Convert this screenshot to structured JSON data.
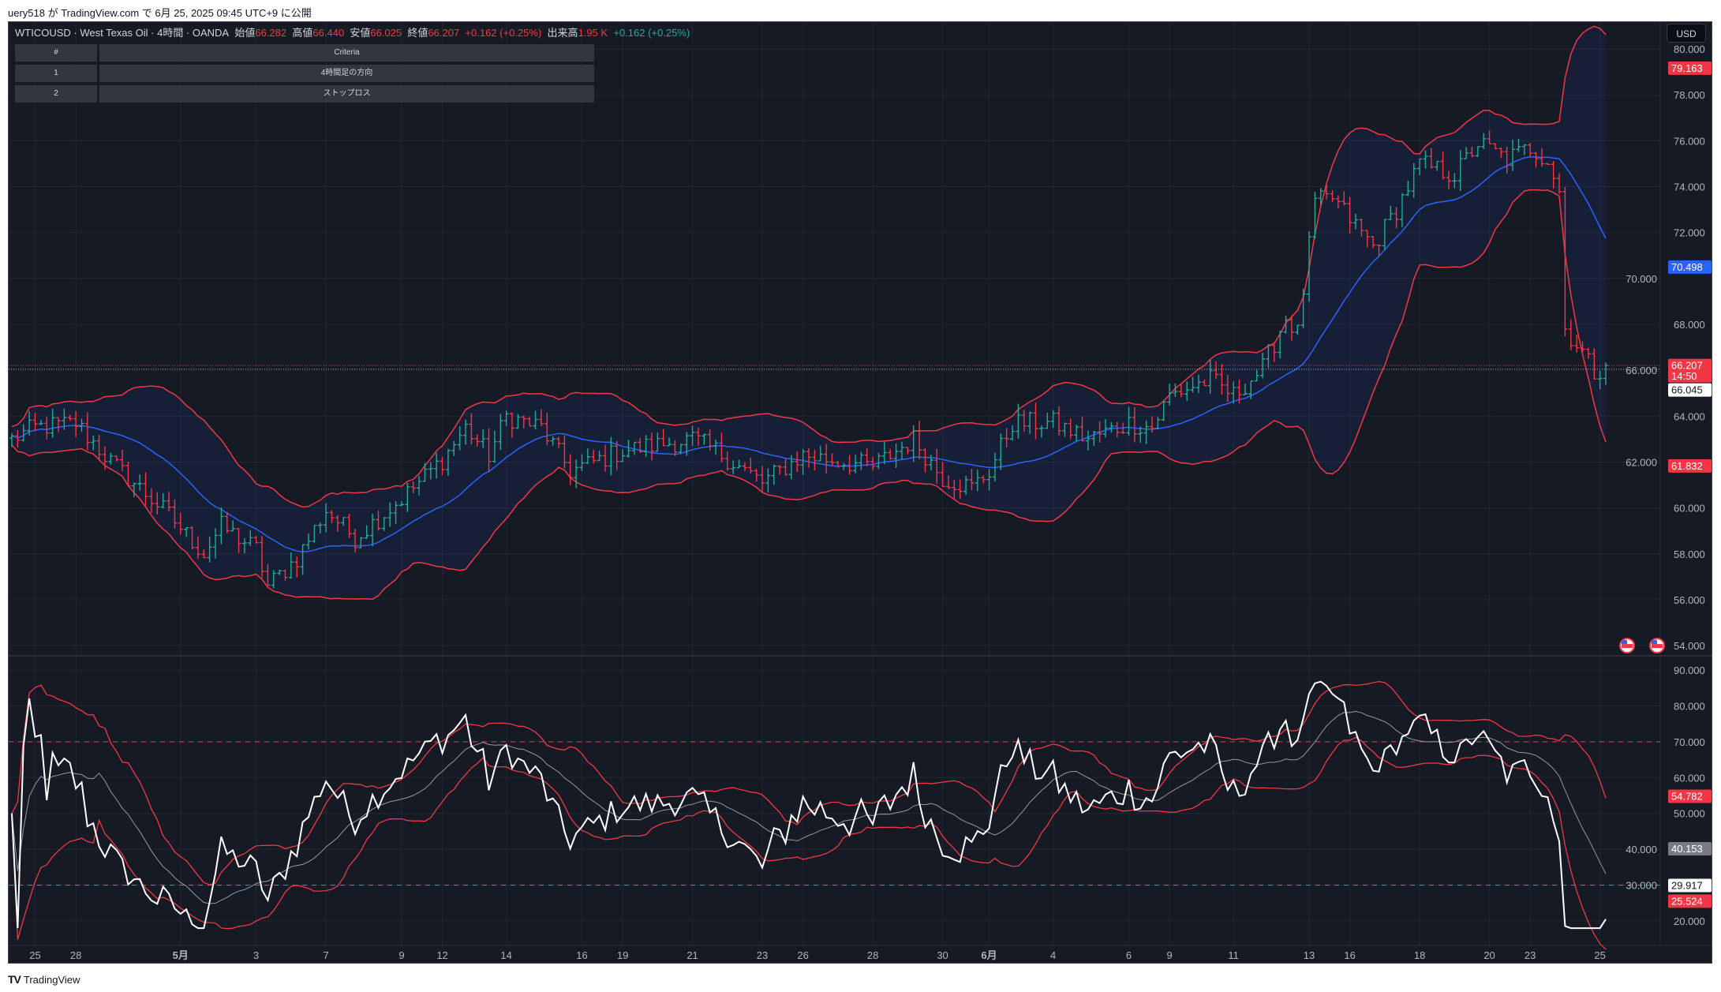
{
  "header": {
    "published": "uery518 が TradingView.com で 6月 25, 2025 09:45 UTC+9 に公開"
  },
  "legend": {
    "symbol": "WTICOUSD · West Texas Oil · 4時間 · OANDA",
    "open_label": "始値",
    "open": "66.282",
    "high_label": "高値",
    "high": "66.440",
    "low_label": "安値",
    "low": "66.025",
    "close_label": "終値",
    "close": "66.207",
    "change": "+0.162 (+0.25%)",
    "volume_label": "出来高",
    "volume": "1.95 K",
    "volume_change": "+0.162 (+0.25%)"
  },
  "table": {
    "header": [
      "#",
      "Criteria"
    ],
    "rows": [
      [
        "1",
        "4時間足の方向"
      ],
      [
        "2",
        "ストップロス"
      ]
    ]
  },
  "axis": {
    "currency": "USD",
    "price_ticks": [
      "54.000",
      "56.000",
      "58.000",
      "60.000",
      "62.000",
      "64.000",
      "66.000",
      "68.000",
      "70.000",
      "72.000",
      "74.000",
      "76.000",
      "78.000",
      "80.000"
    ],
    "rsi_ticks": [
      "20.000",
      "30.000",
      "40.000",
      "50.000",
      "60.000",
      "70.000",
      "80.000",
      "90.000"
    ],
    "price_labels": [
      {
        "value": 79.163,
        "text": "79.163",
        "color": "#f23645",
        "fg": "#ffffff"
      },
      {
        "value": 70.498,
        "text": "70.498",
        "color": "#2962ff",
        "fg": "#ffffff"
      },
      {
        "value": 66.207,
        "text": "66.207",
        "sub": "14:50",
        "color": "#f23645",
        "fg": "#ffffff"
      },
      {
        "value": 66.045,
        "text": "66.045",
        "color": "#ffffff",
        "fg": "#131722"
      },
      {
        "value": 61.832,
        "text": "61.832",
        "color": "#f23645",
        "fg": "#ffffff"
      }
    ],
    "rsi_labels": [
      {
        "value": 54.782,
        "text": "54.782",
        "color": "#f23645",
        "fg": "#ffffff"
      },
      {
        "value": 40.153,
        "text": "40.153",
        "color": "#787b86",
        "fg": "#ffffff"
      },
      {
        "value": 29.917,
        "text": "29.917",
        "color": "#ffffff",
        "fg": "#131722"
      },
      {
        "value": 25.524,
        "text": "25.524",
        "color": "#f23645",
        "fg": "#ffffff"
      }
    ],
    "time_ticks": [
      {
        "bar": 4,
        "label": "25"
      },
      {
        "bar": 11,
        "label": "28"
      },
      {
        "bar": 29,
        "label": "5月",
        "bold": true
      },
      {
        "bar": 42,
        "label": "3"
      },
      {
        "bar": 54,
        "label": "7"
      },
      {
        "bar": 67,
        "label": "9"
      },
      {
        "bar": 74,
        "label": "12"
      },
      {
        "bar": 85,
        "label": "14"
      },
      {
        "bar": 98,
        "label": "16"
      },
      {
        "bar": 105,
        "label": "19"
      },
      {
        "bar": 117,
        "label": "21"
      },
      {
        "bar": 129,
        "label": "23"
      },
      {
        "bar": 136,
        "label": "26"
      },
      {
        "bar": 148,
        "label": "28"
      },
      {
        "bar": 160,
        "label": "30"
      },
      {
        "bar": 168,
        "label": "6月",
        "bold": true
      },
      {
        "bar": 179,
        "label": "4"
      },
      {
        "bar": 192,
        "label": "6"
      },
      {
        "bar": 199,
        "label": "9"
      },
      {
        "bar": 210,
        "label": "11"
      },
      {
        "bar": 223,
        "label": "13"
      },
      {
        "bar": 230,
        "label": "16"
      },
      {
        "bar": 242,
        "label": "18"
      },
      {
        "bar": 254,
        "label": "20"
      },
      {
        "bar": 261,
        "label": "23"
      },
      {
        "bar": 273,
        "label": "25"
      }
    ]
  },
  "colors": {
    "up": "#22ab94",
    "down": "#f23645",
    "basis": "#2962ff",
    "band": "#f23645",
    "rsi": "#ffffff",
    "rsi_ma": "#9598a1",
    "bg": "#161a25",
    "grid": "#232733"
  },
  "chart_data": {
    "type": "ohlc",
    "title": "WTICOUSD 4H",
    "bars": 275,
    "price_range": [
      53.4,
      80.6
    ],
    "rsi_range": [
      15,
      95
    ],
    "rsi_levels": [
      70,
      30
    ],
    "close_keypoints": [
      [
        0,
        63.0
      ],
      [
        4,
        63.5
      ],
      [
        11,
        63.7
      ],
      [
        17,
        62
      ],
      [
        27,
        59.7
      ],
      [
        33,
        58
      ],
      [
        36,
        59.2
      ],
      [
        42,
        58.2
      ],
      [
        44,
        56.6
      ],
      [
        49,
        57.8
      ],
      [
        54,
        59.9
      ],
      [
        59,
        58.7
      ],
      [
        67,
        60.4
      ],
      [
        74,
        62.1
      ],
      [
        78,
        63.5
      ],
      [
        82,
        62.3
      ],
      [
        85,
        64
      ],
      [
        91,
        63.5
      ],
      [
        96,
        61.6
      ],
      [
        105,
        62.5
      ],
      [
        117,
        63
      ],
      [
        121,
        62.5
      ],
      [
        129,
        61.1
      ],
      [
        136,
        62.3
      ],
      [
        148,
        61.8
      ],
      [
        155,
        63
      ],
      [
        160,
        61.3
      ],
      [
        165,
        60.9
      ],
      [
        168,
        61.6
      ],
      [
        172,
        63.7
      ],
      [
        179,
        63.7
      ],
      [
        185,
        63
      ],
      [
        192,
        63.7
      ],
      [
        196,
        63.5
      ],
      [
        199,
        64.9
      ],
      [
        206,
        65.6
      ],
      [
        210,
        64.9
      ],
      [
        215,
        66.1
      ],
      [
        219,
        68.3
      ],
      [
        221,
        67.6
      ],
      [
        224,
        73.3
      ],
      [
        227,
        73.5
      ],
      [
        230,
        72.6
      ],
      [
        234,
        71.4
      ],
      [
        238,
        73
      ],
      [
        242,
        75
      ],
      [
        248,
        74.5
      ],
      [
        252,
        75.9
      ],
      [
        257,
        75.2
      ],
      [
        261,
        75.7
      ],
      [
        264,
        75.2
      ],
      [
        266,
        73.8
      ],
      [
        267,
        67.8
      ],
      [
        270,
        66.8
      ],
      [
        272,
        65.9
      ],
      [
        274,
        66.207
      ]
    ]
  },
  "footer": {
    "brand": "TradingView"
  }
}
